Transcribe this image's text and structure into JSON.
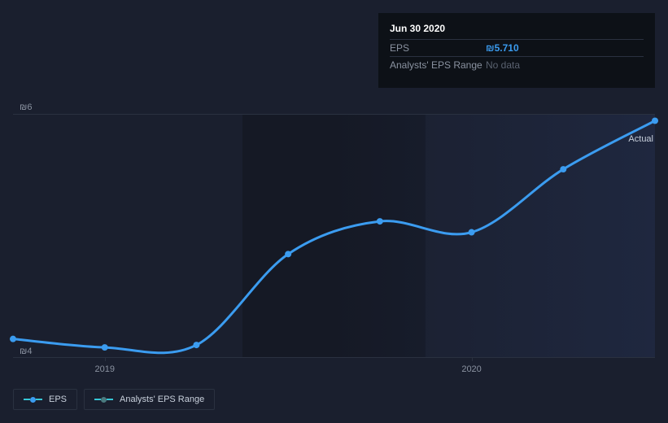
{
  "tooltip": {
    "date": "Jun 30 2020",
    "rows": [
      {
        "label": "EPS",
        "value": "₪5.710",
        "style": "blue"
      },
      {
        "label": "Analysts' EPS Range",
        "value": "No data",
        "style": "muted"
      }
    ]
  },
  "chart": {
    "type": "line",
    "background_color": "#1a1f2e",
    "line_color": "#3b9cf0",
    "line_width": 3,
    "marker_color": "#3b9cf0",
    "marker_radius": 4,
    "grid_color": "#2a3140",
    "actual_label": "Actual",
    "y_axis": {
      "min": 4,
      "max": 6,
      "ticks": [
        {
          "value": 6,
          "label": "₪6"
        },
        {
          "value": 4,
          "label": "₪4"
        }
      ]
    },
    "x_axis": {
      "ticks": [
        {
          "index": 1,
          "label": "2019"
        },
        {
          "index": 5,
          "label": "2020"
        }
      ]
    },
    "highlight": {
      "start_index": 3,
      "end_index": 4
    },
    "points": [
      {
        "index": 0,
        "value": 4.15
      },
      {
        "index": 1,
        "value": 4.08
      },
      {
        "index": 2,
        "value": 4.1
      },
      {
        "index": 3,
        "value": 4.85
      },
      {
        "index": 4,
        "value": 5.12
      },
      {
        "index": 5,
        "value": 5.03
      },
      {
        "index": 6,
        "value": 5.55
      },
      {
        "index": 7,
        "value": 5.95
      }
    ],
    "x_count": 8
  },
  "legend": {
    "items": [
      {
        "label": "EPS",
        "line_color": "#35c6d6",
        "dot_color": "#3b9cf0"
      },
      {
        "label": "Analysts' EPS Range",
        "line_color": "#35c6d6",
        "dot_color": "#4a7a7f"
      }
    ]
  }
}
